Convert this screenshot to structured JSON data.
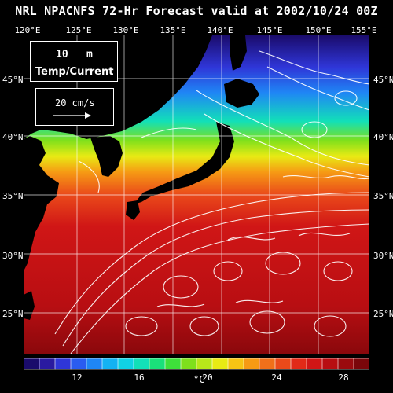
{
  "title": "NRL NPACNFS 72-Hr Forecast valid at 2002/10/24 00Z",
  "legend": {
    "level": "10",
    "level_unit": "m",
    "variable": "Temp/Current",
    "reference_vector": "20 cm/s"
  },
  "axes": {
    "lon_labels": [
      "120°E",
      "125°E",
      "130°E",
      "135°E",
      "140°E",
      "145°E",
      "150°E",
      "155°E"
    ],
    "lat_labels": [
      "45°N",
      "40°N",
      "35°N",
      "30°N",
      "25°N"
    ]
  },
  "colorbar": {
    "unit": "°C",
    "ticks": [
      "12",
      "16",
      "20",
      "24",
      "28"
    ],
    "colors": [
      "#1a0b6b",
      "#2a1aa0",
      "#2f36d8",
      "#2a5cf0",
      "#1f86f5",
      "#14b2f2",
      "#10d2e4",
      "#12e0b8",
      "#1ae07a",
      "#3ee03a",
      "#7ee01c",
      "#b8e81a",
      "#e8ea14",
      "#f6c414",
      "#f69a14",
      "#f0701a",
      "#ea4a1a",
      "#e22a18",
      "#d01616",
      "#b80e12",
      "#9a0a0e",
      "#7a060a"
    ]
  },
  "colors": {
    "land": "#000000",
    "background": "#000000",
    "grid": "#ffffff",
    "vectors": "#ffffff"
  }
}
